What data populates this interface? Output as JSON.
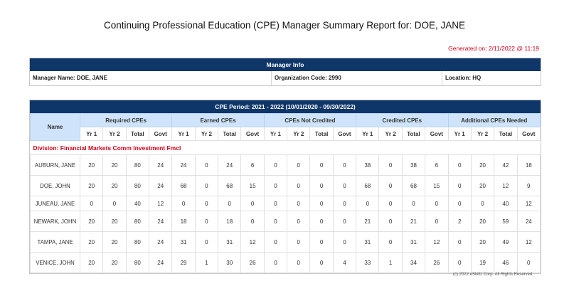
{
  "title": "Continuing Professional Education (CPE) Manager Summary Report for: DOE, JANE",
  "generated": "Generated on: 2/11/2022 @ 11:19",
  "manager_info": {
    "header": "Manager Info",
    "name": "Manager Name: DOE, JANE",
    "org": "Organization Code: 2990",
    "location": "Location: HQ"
  },
  "cpe": {
    "period": "CPE Period: 2021 - 2022 (10/01/2020 - 09/30/2022)",
    "name_header": "Name",
    "groups": [
      "Required CPEs",
      "Earned CPEs",
      "CPEs Not Credited",
      "Credited CPEs",
      "Additional CPEs Needed"
    ],
    "subheaders": [
      "Yr 1",
      "Yr 2",
      "Total",
      "Govt"
    ],
    "division": "Division: Financial Markets Comm Investment Fmcl",
    "rows": [
      {
        "name": "AUBURN, JANE",
        "values": [
          "20",
          "20",
          "80",
          "24",
          "24",
          "0",
          "24",
          "6",
          "0",
          "0",
          "0",
          "0",
          "38",
          "0",
          "38",
          "6",
          "0",
          "20",
          "42",
          "18"
        ]
      },
      {
        "name": "DOE, JOHN",
        "values": [
          "20",
          "20",
          "80",
          "24",
          "68",
          "0",
          "68",
          "15",
          "0",
          "0",
          "0",
          "0",
          "68",
          "0",
          "68",
          "15",
          "0",
          "20",
          "12",
          "9"
        ]
      },
      {
        "name": "JUNEAU, JANE",
        "values": [
          "0",
          "0",
          "40",
          "12",
          "0",
          "0",
          "0",
          "0",
          "0",
          "0",
          "0",
          "0",
          "0",
          "0",
          "0",
          "0",
          "0",
          "0",
          "40",
          "12"
        ]
      },
      {
        "name": "NEWARK, JOHN",
        "values": [
          "20",
          "20",
          "80",
          "24",
          "18",
          "0",
          "18",
          "0",
          "0",
          "0",
          "0",
          "0",
          "21",
          "0",
          "21",
          "0",
          "2",
          "20",
          "59",
          "24"
        ]
      },
      {
        "name": "TAMPA, JANE",
        "values": [
          "20",
          "20",
          "80",
          "24",
          "31",
          "0",
          "31",
          "12",
          "0",
          "0",
          "0",
          "0",
          "31",
          "0",
          "31",
          "12",
          "0",
          "20",
          "49",
          "12"
        ]
      },
      {
        "name": "VENICE, JOHN",
        "values": [
          "20",
          "20",
          "80",
          "24",
          "29",
          "1",
          "30",
          "26",
          "0",
          "0",
          "0",
          "4",
          "33",
          "1",
          "34",
          "26",
          "0",
          "19",
          "46",
          "0"
        ]
      }
    ]
  },
  "footer": "(c) 2022  eSkillz Corp. All Rights Reserved."
}
